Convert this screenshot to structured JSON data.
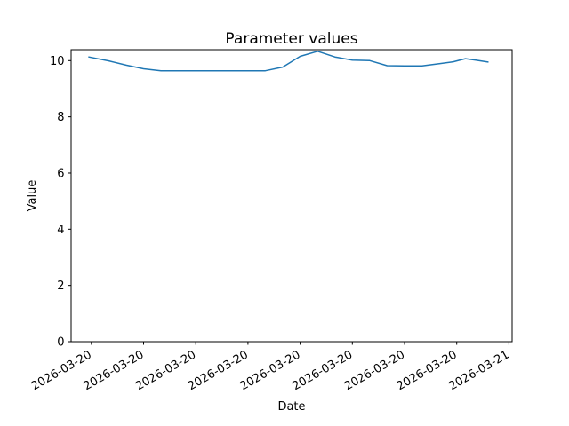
{
  "figure": {
    "background": "#ffffff"
  },
  "chart_data": {
    "type": "line",
    "title": "Parameter values",
    "xlabel": "Date",
    "ylabel": "Value",
    "line_color": "#1f77b4",
    "legend": "none",
    "grid": false,
    "x_axis": {
      "unit": "hours from 2026-03-20 00:00",
      "range_hours": [
        -1.2,
        25.2
      ],
      "tick_hours": [
        0,
        3,
        6,
        9,
        12,
        15,
        18,
        21,
        24
      ],
      "tick_labels": [
        "2026-03-20",
        "2026-03-20",
        "2026-03-20",
        "2026-03-20",
        "2026-03-20",
        "2026-03-20",
        "2026-03-20",
        "2026-03-20",
        "2026-03-21"
      ],
      "tick_rotation_deg": 30
    },
    "y_axis": {
      "range": [
        0,
        10.39
      ],
      "ticks": [
        0,
        2,
        4,
        6,
        8,
        10
      ]
    },
    "series": [
      {
        "name": "Parameter values",
        "x_hours": [
          -0.15,
          1,
          2,
          3,
          4,
          7,
          10,
          11,
          12,
          13,
          14,
          15,
          16,
          17,
          18,
          19,
          20,
          20.8,
          21.5,
          22.1,
          22.8
        ],
        "values": [
          10.13,
          9.99,
          9.84,
          9.71,
          9.64,
          9.64,
          9.64,
          9.77,
          10.15,
          10.33,
          10.13,
          10.02,
          10.0,
          9.82,
          9.81,
          9.81,
          9.89,
          9.96,
          10.07,
          10.02,
          9.95
        ]
      }
    ]
  }
}
